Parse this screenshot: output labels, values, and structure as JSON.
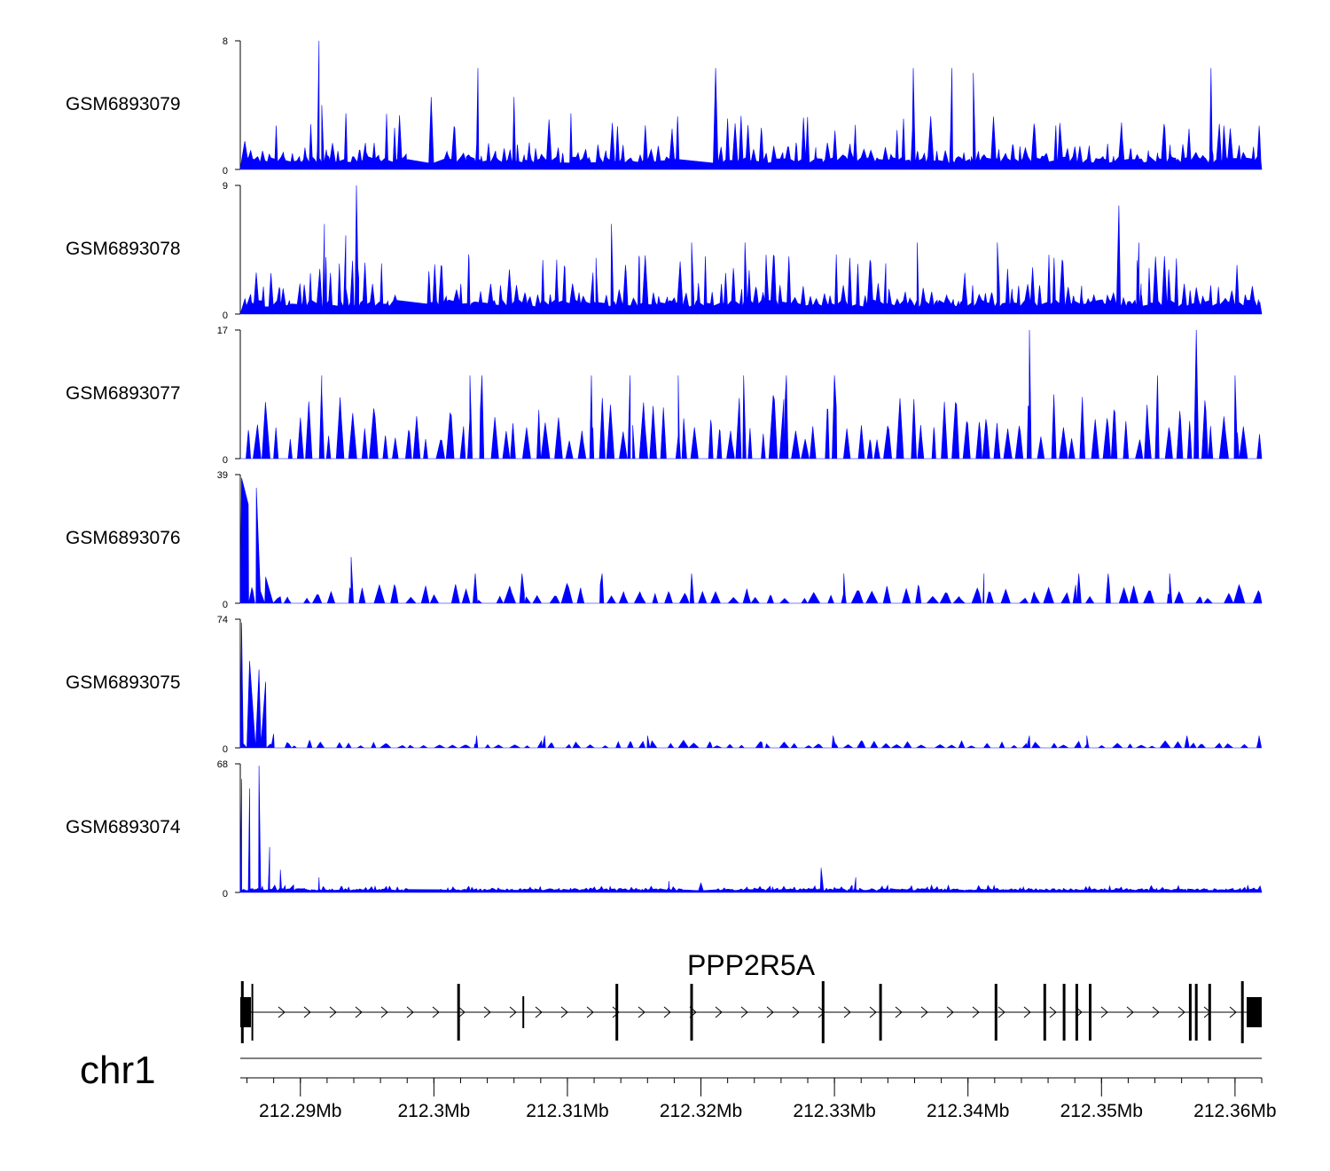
{
  "colors": {
    "signal": "#0000FF",
    "axis": "#000000",
    "text": "#000000"
  },
  "chart_data": {
    "type": "area",
    "title": "",
    "region": {
      "chromosome": "chr1",
      "start_mb": 212.2855,
      "end_mb": 212.362
    },
    "xaxis": {
      "ticks": [
        212.29,
        212.3,
        212.31,
        212.32,
        212.33,
        212.34,
        212.35,
        212.36
      ],
      "tick_labels": [
        "212.29Mb",
        "212.3Mb",
        "212.31Mb",
        "212.32Mb",
        "212.33Mb",
        "212.34Mb",
        "212.35Mb",
        "212.36Mb"
      ],
      "minor_step_mb": 0.002
    },
    "tracks": [
      {
        "name": "GSM6893079",
        "ymin": 0,
        "ymax": 8,
        "ymin_label": "0",
        "ymax_label": "8",
        "profile": {
          "baseline": 0.4,
          "typical": 1.6,
          "frequent_peak": 3.2,
          "peak_count": 150,
          "gaps": [
            [
              212.2982,
              212.3005
            ],
            [
              212.3188,
              212.3215
            ]
          ],
          "peaks": [
            [
              212.2914,
              8.0
            ],
            [
              212.2916,
              4.0
            ],
            [
              212.3033,
              6.3
            ],
            [
              212.3211,
              6.3
            ],
            [
              212.3359,
              6.3
            ],
            [
              212.3388,
              6.3
            ],
            [
              212.3404,
              6.0
            ],
            [
              212.3582,
              6.3
            ],
            [
              212.2998,
              4.5
            ],
            [
              212.306,
              4.5
            ]
          ]
        }
      },
      {
        "name": "GSM6893078",
        "ymin": 0,
        "ymax": 9,
        "ymin_label": "0",
        "ymax_label": "9",
        "profile": {
          "baseline": 0.5,
          "typical": 2.0,
          "frequent_peak": 3.8,
          "peak_count": 150,
          "gaps": [
            [
              212.2975,
              212.2995
            ]
          ],
          "peaks": [
            [
              212.2918,
              6.3
            ],
            [
              212.2942,
              9.0
            ],
            [
              212.2934,
              5.5
            ],
            [
              212.3133,
              6.3
            ],
            [
              212.3193,
              5.0
            ],
            [
              212.3233,
              5.0
            ],
            [
              212.3362,
              5.0
            ],
            [
              212.3422,
              5.0
            ],
            [
              212.3513,
              7.6
            ],
            [
              212.3528,
              5.0
            ]
          ]
        }
      },
      {
        "name": "GSM6893077",
        "ymin": 0,
        "ymax": 17,
        "ymin_label": "0",
        "ymax_label": "17",
        "profile": {
          "baseline": 0.0,
          "typical": 5.5,
          "frequent_peak": 8.0,
          "peak_count": 95,
          "gaps": [],
          "peaks": [
            [
              212.2916,
              11.0
            ],
            [
              212.3027,
              11.0
            ],
            [
              212.3036,
              11.0
            ],
            [
              212.3118,
              11.0
            ],
            [
              212.3147,
              11.0
            ],
            [
              212.3183,
              11.0
            ],
            [
              212.3232,
              11.0
            ],
            [
              212.3264,
              11.0
            ],
            [
              212.33,
              11.0
            ],
            [
              212.3446,
              17.0
            ],
            [
              212.3542,
              11.0
            ],
            [
              212.3571,
              17.0
            ],
            [
              212.36,
              11.0
            ]
          ]
        }
      },
      {
        "name": "GSM6893076",
        "ymin": 0,
        "ymax": 39,
        "ymin_label": "0",
        "ymax_label": "39",
        "profile": {
          "baseline": 0.0,
          "typical": 3.5,
          "frequent_peak": 5.5,
          "peak_count": 70,
          "gaps": [],
          "head": [
            [
              212.2856,
              38.0
            ],
            [
              212.2861,
              30.0
            ],
            [
              212.2867,
              35.0
            ],
            [
              212.2874,
              8.0
            ],
            [
              212.2885,
              2.0
            ]
          ],
          "peaks": [
            [
              212.2938,
              14.0
            ],
            [
              212.3031,
              9.0
            ],
            [
              212.3066,
              9.0
            ],
            [
              212.3126,
              9.0
            ],
            [
              212.3193,
              9.0
            ],
            [
              212.3307,
              9.0
            ],
            [
              212.3412,
              9.0
            ],
            [
              212.3483,
              9.0
            ],
            [
              212.3505,
              9.0
            ],
            [
              212.3551,
              9.0
            ]
          ]
        }
      },
      {
        "name": "GSM6893075",
        "ymin": 0,
        "ymax": 74,
        "ymin_label": "0",
        "ymax_label": "74",
        "profile": {
          "baseline": 0.0,
          "typical": 2.5,
          "frequent_peak": 4.0,
          "peak_count": 80,
          "gaps": [],
          "head": [
            [
              212.2856,
              72.0
            ],
            [
              212.2862,
              50.0
            ],
            [
              212.2869,
              45.0
            ],
            [
              212.2874,
              38.0
            ],
            [
              212.288,
              8.0
            ],
            [
              212.289,
              3.0
            ]
          ],
          "peaks": [
            [
              212.3032,
              7.0
            ],
            [
              212.3083,
              7.0
            ],
            [
              212.316,
              7.0
            ],
            [
              212.3299,
              7.0
            ],
            [
              212.3446,
              7.0
            ],
            [
              212.3489,
              7.0
            ],
            [
              212.3564,
              7.0
            ],
            [
              212.3618,
              7.0
            ]
          ]
        }
      },
      {
        "name": "GSM6893074",
        "ymin": 0,
        "ymax": 68,
        "ymin_label": "0",
        "ymax_label": "68",
        "profile": {
          "baseline": 1.0,
          "typical": 2.2,
          "frequent_peak": 3.5,
          "peak_count": 200,
          "gaps": [
            [
              212.2982,
              212.3002
            ],
            [
              212.3188,
              212.321
            ]
          ],
          "head": [
            [
              212.2856,
              60.0
            ],
            [
              212.2862,
              55.0
            ],
            [
              212.2869,
              67.0
            ],
            [
              212.2877,
              24.0
            ],
            [
              212.2885,
              12.0
            ],
            [
              212.2895,
              4.0
            ]
          ],
          "peaks": [
            [
              212.2914,
              8.0
            ],
            [
              212.329,
              13.0
            ],
            [
              212.3316,
              8.0
            ],
            [
              212.3176,
              6.0
            ],
            [
              212.32,
              5.0
            ]
          ]
        }
      }
    ],
    "gene": {
      "name": "PPP2R5A",
      "strand": "+",
      "start_mb": 212.2855,
      "end_mb": 212.362,
      "exons_mb": [
        212.28565,
        212.2864,
        212.30185,
        212.3067,
        212.3137,
        212.3193,
        212.32915,
        212.33345,
        212.3421,
        212.34575,
        212.3472,
        212.34815,
        212.34915,
        212.35665,
        212.3571,
        212.3581,
        212.36055
      ]
    },
    "chromosome_label": "chr1"
  }
}
